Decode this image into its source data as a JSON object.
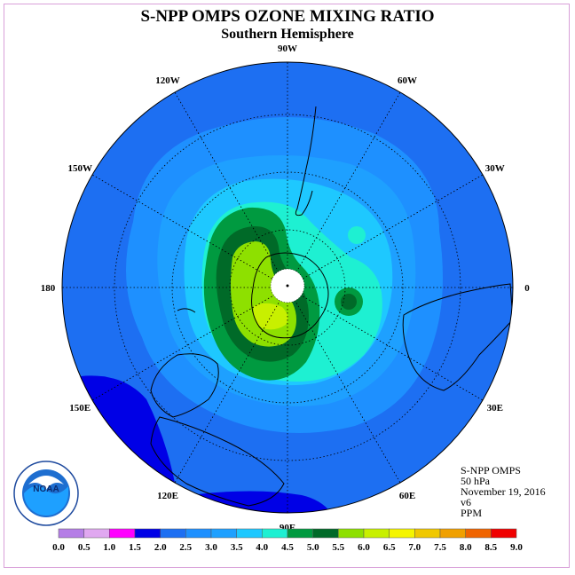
{
  "title": "S-NPP OMPS OZONE MIXING RATIO",
  "subtitle": "Southern Hemisphere",
  "longitude_labels": [
    {
      "text": "90W",
      "angle_deg": -90
    },
    {
      "text": "60W",
      "angle_deg": -60
    },
    {
      "text": "30W",
      "angle_deg": -30
    },
    {
      "text": "0",
      "angle_deg": 0
    },
    {
      "text": "30E",
      "angle_deg": 30
    },
    {
      "text": "60E",
      "angle_deg": 60
    },
    {
      "text": "90E",
      "angle_deg": 90
    },
    {
      "text": "120E",
      "angle_deg": 120
    },
    {
      "text": "150E",
      "angle_deg": 150
    },
    {
      "text": "180",
      "angle_deg": 180
    },
    {
      "text": "150W",
      "angle_deg": 210
    },
    {
      "text": "120W",
      "angle_deg": 240
    }
  ],
  "info": {
    "instrument": "S-NPP OMPS",
    "level": "50 hPa",
    "date": "November 19, 2016",
    "version": "v6",
    "units": "PPM"
  },
  "legend": {
    "ticks": [
      "0.0",
      "0.5",
      "1.0",
      "1.5",
      "2.0",
      "2.5",
      "3.0",
      "3.5",
      "4.0",
      "4.5",
      "5.0",
      "5.5",
      "6.0",
      "6.5",
      "7.0",
      "7.5",
      "8.0",
      "8.5",
      "9.0"
    ],
    "colors": [
      "#b57ee6",
      "#e0a8f0",
      "#ff00ff",
      "#0000e6",
      "#1d6ff2",
      "#1e90ff",
      "#1ea0ff",
      "#1ec8ff",
      "#1ef0d2",
      "#009a40",
      "#006a28",
      "#8ee000",
      "#c8f000",
      "#f5f500",
      "#f0c800",
      "#f0a000",
      "#f06400",
      "#f00000",
      "#8b5a3c"
    ]
  },
  "logo_text": "NOAA",
  "colors": {
    "border": "#d9a0d9"
  }
}
